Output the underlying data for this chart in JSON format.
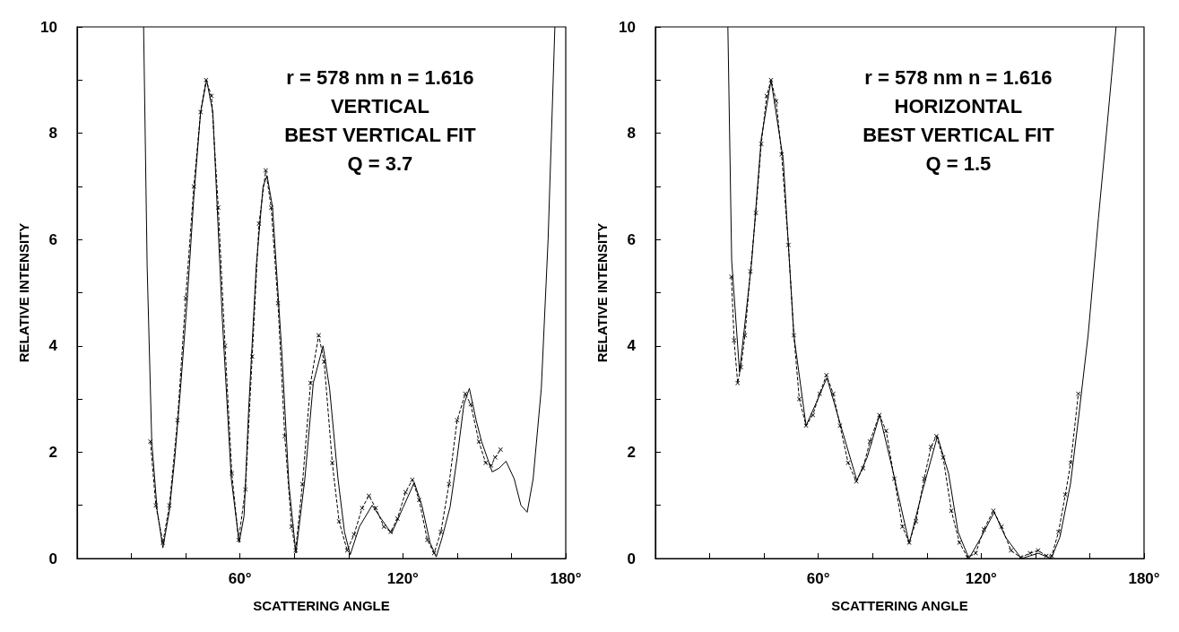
{
  "chart_data": [
    {
      "type": "line",
      "xlabel": "SCATTERING ANGLE",
      "ylabel": "RELATIVE INTENSITY",
      "annotations": [
        "r = 578 nm n = 1.616",
        "VERTICAL",
        "BEST VERTICAL FIT",
        "Q = 3.7"
      ],
      "xlim": [
        0,
        180
      ],
      "xticks": [
        {
          "value": 0,
          "label": null
        },
        {
          "value": 20,
          "label": null
        },
        {
          "value": 40,
          "label": null
        },
        {
          "value": 60,
          "label": "60°"
        },
        {
          "value": 80,
          "label": null
        },
        {
          "value": 100,
          "label": null
        },
        {
          "value": 120,
          "label": "120°"
        },
        {
          "value": 140,
          "label": null
        },
        {
          "value": 160,
          "label": null
        },
        {
          "value": 180,
          "label": "180°"
        }
      ],
      "ylim": [
        0,
        10
      ],
      "yticks": [
        0,
        {
          "value": 1,
          "label": null
        },
        2,
        {
          "value": 3,
          "label": null
        },
        4,
        {
          "value": 5,
          "label": null
        },
        6,
        {
          "value": 7,
          "label": null
        },
        8,
        {
          "value": 9,
          "label": null
        },
        10
      ],
      "grid": false,
      "series": [
        {
          "color": "#000000",
          "marker": "none",
          "line_style": "solid",
          "x": [
            24.5,
            25.8,
            27.5,
            29.5,
            31.6,
            34,
            36,
            38.1,
            40.6,
            43,
            45.5,
            47.7,
            50,
            53.5,
            56.8,
            59.7,
            61.5,
            63.2,
            66,
            68.5,
            70,
            72,
            75.5,
            78,
            80.6,
            83.9,
            87,
            90.6,
            93,
            96.1,
            98.5,
            100.6,
            104,
            108.7,
            112,
            115.8,
            120,
            124.2,
            127,
            130,
            132.3,
            134.5,
            137.4,
            140,
            142.5,
            144.5,
            147,
            149,
            152.9,
            155.5,
            158,
            161,
            163.5,
            165.8,
            168,
            171,
            173.5,
            176
          ],
          "values": [
            10,
            5.5,
            2.2,
            0.9,
            0.2,
            0.9,
            1.9,
            3.2,
            4.9,
            6.8,
            8.4,
            9.0,
            8.4,
            4.5,
            1.5,
            0.3,
            0.8,
            2.8,
            5.5,
            7.0,
            7.2,
            6.6,
            3.8,
            1.4,
            0.1,
            1.5,
            3.3,
            4.0,
            3.2,
            1.5,
            0.5,
            0.07,
            0.6,
            1.0,
            0.75,
            0.47,
            0.95,
            1.43,
            1.0,
            0.3,
            0.03,
            0.4,
            0.97,
            1.9,
            2.9,
            3.2,
            2.6,
            2.2,
            1.63,
            1.7,
            1.83,
            1.5,
            1.0,
            0.87,
            1.5,
            3.2,
            6.0,
            10
          ]
        },
        {
          "color": "#000000",
          "marker": "cross",
          "line_style": "dashed",
          "x": [
            27,
            29,
            31.6,
            34,
            37,
            40,
            43,
            45.5,
            47.5,
            49.5,
            52,
            54.5,
            57,
            59.5,
            62,
            64.5,
            67,
            69.5,
            71.5,
            74,
            76.5,
            79,
            80.5,
            83,
            86,
            89,
            91,
            94,
            96.5,
            99.5,
            102,
            105,
            107.5,
            110,
            113,
            115.5,
            118,
            121,
            123.5,
            126,
            129,
            131.5,
            134,
            137,
            140,
            143,
            145,
            148,
            150.5,
            152.5,
            154,
            156
          ],
          "values": [
            2.2,
            1.0,
            0.3,
            1.0,
            2.6,
            4.9,
            7.0,
            8.4,
            9.0,
            8.7,
            6.6,
            4.0,
            1.6,
            0.35,
            1.3,
            3.8,
            6.3,
            7.3,
            6.6,
            4.8,
            2.3,
            0.6,
            0.15,
            1.4,
            3.3,
            4.2,
            3.7,
            1.8,
            0.7,
            0.15,
            0.45,
            0.95,
            1.18,
            0.95,
            0.6,
            0.5,
            0.75,
            1.25,
            1.48,
            1.1,
            0.35,
            0.1,
            0.5,
            1.4,
            2.6,
            3.1,
            2.9,
            2.2,
            1.8,
            1.75,
            1.9,
            2.05
          ]
        }
      ]
    },
    {
      "type": "line",
      "xlabel": "SCATTERING ANGLE",
      "ylabel": "RELATIVE INTENSITY",
      "annotations": [
        "r = 578 nm n = 1.616",
        "HORIZONTAL",
        "BEST VERTICAL FIT",
        "Q = 1.5"
      ],
      "xlim": [
        0,
        180
      ],
      "xticks": [
        {
          "value": 0,
          "label": null
        },
        {
          "value": 20,
          "label": null
        },
        {
          "value": 40,
          "label": null
        },
        {
          "value": 60,
          "label": "60°"
        },
        {
          "value": 80,
          "label": null
        },
        {
          "value": 100,
          "label": null
        },
        {
          "value": 120,
          "label": "120°"
        },
        {
          "value": 140,
          "label": null
        },
        {
          "value": 160,
          "label": null
        },
        {
          "value": 180,
          "label": "180°"
        }
      ],
      "ylim": [
        0,
        10
      ],
      "yticks": [
        0,
        {
          "value": 1,
          "label": null
        },
        2,
        {
          "value": 3,
          "label": null
        },
        4,
        {
          "value": 5,
          "label": null
        },
        6,
        {
          "value": 7,
          "label": null
        },
        8,
        {
          "value": 9,
          "label": null
        },
        10
      ],
      "grid": false,
      "series": [
        {
          "color": "#000000",
          "marker": "none",
          "line_style": "solid",
          "x": [
            26.7,
            28.1,
            31,
            35.5,
            39,
            42.6,
            47.1,
            51,
            55.5,
            59,
            63.2,
            67.7,
            74.2,
            78,
            82.6,
            87.7,
            93.5,
            98,
            103.9,
            108,
            111.5,
            115.5,
            120,
            124.8,
            129,
            134.8,
            138,
            141,
            145.8,
            149,
            152.9,
            156,
            159.4,
            163.2,
            166.5,
            169.7
          ],
          "values": [
            10,
            5.6,
            3.5,
            5.6,
            7.9,
            9.0,
            7.5,
            4.2,
            2.5,
            2.9,
            3.4,
            2.6,
            1.47,
            1.9,
            2.7,
            1.6,
            0.28,
            1.2,
            2.3,
            1.6,
            0.5,
            0,
            0.4,
            0.87,
            0.4,
            0,
            0.05,
            0.1,
            0,
            0.4,
            1.4,
            2.7,
            4.2,
            6.4,
            8.2,
            10
          ]
        },
        {
          "color": "#000000",
          "marker": "cross",
          "line_style": "dashed",
          "x": [
            28,
            29,
            30.3,
            31.5,
            33,
            35,
            37,
            39,
            41,
            42.6,
            44.5,
            46.5,
            49,
            51,
            53,
            55.5,
            58,
            60.5,
            63,
            65.5,
            68,
            71,
            74,
            76.5,
            79,
            82.5,
            85,
            88,
            91,
            93.5,
            96,
            99,
            101.5,
            103.5,
            106,
            109,
            112,
            115,
            118,
            121,
            124.5,
            127.5,
            131,
            134.5,
            138,
            141,
            144,
            146,
            148.5,
            151,
            153,
            155.8
          ],
          "values": [
            5.3,
            4.1,
            3.3,
            3.6,
            4.2,
            5.4,
            6.5,
            7.8,
            8.7,
            9.0,
            8.6,
            7.6,
            5.9,
            4.2,
            3.0,
            2.5,
            2.7,
            3.1,
            3.45,
            3.1,
            2.5,
            1.8,
            1.45,
            1.7,
            2.2,
            2.7,
            2.4,
            1.5,
            0.6,
            0.3,
            0.7,
            1.5,
            2.1,
            2.3,
            1.9,
            0.9,
            0.3,
            0.02,
            0.1,
            0.55,
            0.9,
            0.6,
            0.15,
            0.02,
            0.1,
            0.15,
            0.05,
            0.05,
            0.5,
            1.2,
            1.8,
            3.1
          ]
        }
      ]
    }
  ]
}
